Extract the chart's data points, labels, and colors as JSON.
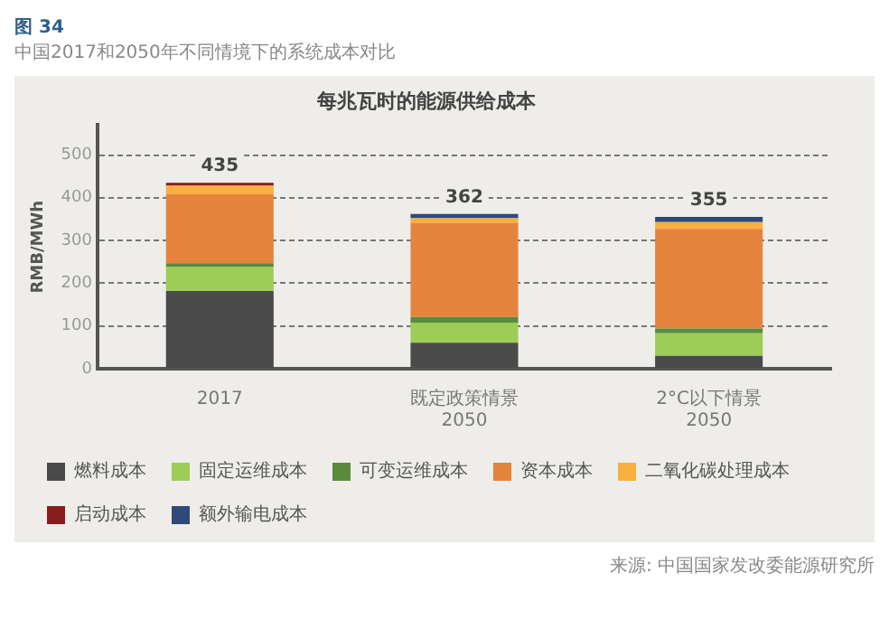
{
  "chart_data": {
    "type": "bar",
    "title": "每兆瓦时的能源供给成本",
    "subtitle": "中国2017和2050年不同情境下的系统成本对比",
    "ylabel": "RMB/MWh",
    "annotations": [
      "图 34",
      "来源: 中国国家发改委能源研究所"
    ],
    "categories": [
      "2017",
      "既定政策情景\n2050",
      "2°C以下情景\n2050"
    ],
    "stacked": true,
    "ylim": [
      0,
      570
    ],
    "yticks": [
      0,
      100,
      200,
      300,
      400,
      500
    ],
    "grid": "y",
    "legend": "bottom",
    "totals": [
      "435",
      "362",
      "355"
    ],
    "series": [
      {
        "name": "燃料成本",
        "color": "#4a4a4a",
        "values": [
          182,
          61,
          30
        ]
      },
      {
        "name": "固定运维成本",
        "color": "#9dcc57",
        "values": [
          56,
          47,
          53
        ]
      },
      {
        "name": "可变运维成本",
        "color": "#5a8a3c",
        "values": [
          9,
          13,
          11
        ]
      },
      {
        "name": "资本成本",
        "color": "#e5843d",
        "values": [
          161,
          220,
          233
        ]
      },
      {
        "name": "二氧化碳处理成本",
        "color": "#f9b040",
        "values": [
          20,
          11,
          16
        ]
      },
      {
        "name": "启动成本",
        "color": "#8b1c1c",
        "values": [
          7,
          null,
          null
        ]
      },
      {
        "name": "额外输电成本",
        "color": "#2f4a78",
        "values": [
          null,
          10,
          12
        ]
      }
    ]
  }
}
